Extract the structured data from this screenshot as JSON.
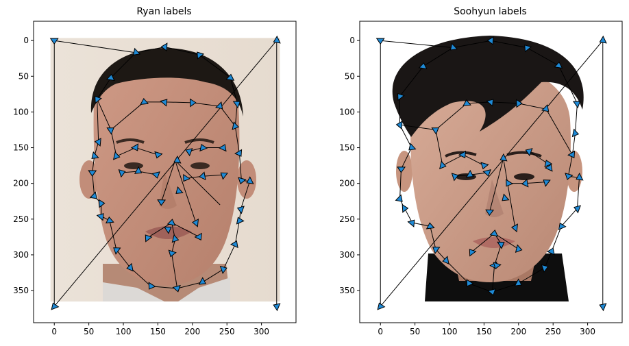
{
  "chart_data": [
    {
      "type": "scatter",
      "title": "Ryan labels",
      "xlabel": "",
      "ylabel": "",
      "xlim": [
        -30,
        350
      ],
      "ylim": [
        395,
        -27
      ],
      "xticks": [
        0,
        50,
        100,
        150,
        200,
        250,
        300
      ],
      "yticks": [
        0,
        50,
        100,
        150,
        200,
        250,
        300,
        350
      ],
      "image": {
        "extent": [
          0,
          322,
          372,
          0
        ],
        "description": "face photograph"
      },
      "points": [
        [
          0,
          0
        ],
        [
          118,
          17
        ],
        [
          160,
          9
        ],
        [
          210,
          20
        ],
        [
          255,
          52
        ],
        [
          265,
          88
        ],
        [
          262,
          120
        ],
        [
          268,
          158
        ],
        [
          271,
          196
        ],
        [
          283,
          197
        ],
        [
          270,
          236
        ],
        [
          268,
          252
        ],
        [
          262,
          285
        ],
        [
          245,
          320
        ],
        [
          215,
          338
        ],
        [
          178,
          347
        ],
        [
          140,
          344
        ],
        [
          110,
          318
        ],
        [
          90,
          293
        ],
        [
          80,
          252
        ],
        [
          68,
          246
        ],
        [
          68,
          228
        ],
        [
          58,
          218
        ],
        [
          55,
          185
        ],
        [
          58,
          162
        ],
        [
          64,
          142
        ],
        [
          62,
          82
        ],
        [
          82,
          52
        ],
        [
          82,
          125
        ],
        [
          90,
          162
        ],
        [
          118,
          150
        ],
        [
          150,
          160
        ],
        [
          178,
          168
        ],
        [
          195,
          155
        ],
        [
          215,
          150
        ],
        [
          245,
          150
        ],
        [
          98,
          185
        ],
        [
          122,
          183
        ],
        [
          148,
          188
        ],
        [
          190,
          193
        ],
        [
          215,
          190
        ],
        [
          245,
          188
        ],
        [
          130,
          86
        ],
        [
          160,
          86
        ],
        [
          200,
          87
        ],
        [
          240,
          92
        ],
        [
          155,
          226
        ],
        [
          180,
          211
        ],
        [
          205,
          255
        ],
        [
          135,
          276
        ],
        [
          170,
          255
        ],
        [
          165,
          264
        ],
        [
          175,
          278
        ],
        [
          210,
          275
        ],
        [
          170,
          298
        ],
        [
          322,
          0
        ],
        [
          322,
          372
        ],
        [
          0,
          372
        ]
      ],
      "polyline": [
        [
          0,
          0
        ],
        [
          118,
          17
        ],
        [
          160,
          9
        ],
        [
          210,
          20
        ],
        [
          255,
          52
        ],
        [
          265,
          88
        ],
        [
          262,
          120
        ],
        [
          268,
          158
        ],
        [
          271,
          196
        ],
        [
          283,
          197
        ],
        [
          270,
          236
        ],
        [
          268,
          252
        ],
        [
          262,
          285
        ],
        [
          245,
          320
        ],
        [
          215,
          338
        ],
        [
          178,
          347
        ],
        [
          140,
          344
        ],
        [
          110,
          318
        ],
        [
          90,
          293
        ],
        [
          80,
          252
        ],
        [
          68,
          246
        ],
        [
          68,
          228
        ],
        [
          58,
          218
        ],
        [
          55,
          185
        ],
        [
          58,
          162
        ],
        [
          64,
          142
        ],
        [
          62,
          82
        ],
        [
          82,
          52
        ],
        [
          118,
          17
        ],
        [
          160,
          9
        ]
      ],
      "segments": [
        [
          [
            0,
            0
          ],
          [
            0,
            372
          ]
        ],
        [
          [
            322,
            0
          ],
          [
            322,
            372
          ]
        ],
        [
          [
            0,
            372
          ],
          [
            322,
            0
          ]
        ],
        [
          [
            82,
            125
          ],
          [
            90,
            162
          ]
        ],
        [
          [
            90,
            162
          ],
          [
            118,
            150
          ]
        ],
        [
          [
            118,
            150
          ],
          [
            150,
            160
          ]
        ],
        [
          [
            195,
            155
          ],
          [
            215,
            150
          ]
        ],
        [
          [
            215,
            150
          ],
          [
            245,
            150
          ]
        ],
        [
          [
            98,
            185
          ],
          [
            122,
            183
          ]
        ],
        [
          [
            122,
            183
          ],
          [
            148,
            188
          ]
        ],
        [
          [
            190,
            193
          ],
          [
            215,
            190
          ]
        ],
        [
          [
            215,
            190
          ],
          [
            245,
            188
          ]
        ],
        [
          [
            62,
            82
          ],
          [
            82,
            125
          ]
        ],
        [
          [
            82,
            125
          ],
          [
            130,
            86
          ]
        ],
        [
          [
            130,
            86
          ],
          [
            160,
            86
          ]
        ],
        [
          [
            160,
            86
          ],
          [
            200,
            87
          ]
        ],
        [
          [
            200,
            87
          ],
          [
            240,
            92
          ]
        ],
        [
          [
            240,
            92
          ],
          [
            262,
            120
          ]
        ],
        [
          [
            175,
            168
          ],
          [
            155,
            226
          ]
        ],
        [
          [
            175,
            168
          ],
          [
            205,
            255
          ]
        ],
        [
          [
            175,
            168
          ],
          [
            240,
            230
          ]
        ],
        [
          [
            135,
            276
          ],
          [
            170,
            255
          ]
        ],
        [
          [
            170,
            255
          ],
          [
            210,
            275
          ]
        ],
        [
          [
            170,
            255
          ],
          [
            175,
            278
          ]
        ],
        [
          [
            175,
            278
          ],
          [
            170,
            298
          ]
        ],
        [
          [
            170,
            298
          ],
          [
            178,
            347
          ]
        ]
      ]
    },
    {
      "type": "scatter",
      "title": "Soohyun labels",
      "xlabel": "",
      "ylabel": "",
      "xlim": [
        -30,
        350
      ],
      "ylim": [
        395,
        -27
      ],
      "xticks": [
        0,
        50,
        100,
        150,
        200,
        250,
        300
      ],
      "yticks": [
        0,
        50,
        100,
        150,
        200,
        250,
        300,
        350
      ],
      "image": {
        "extent": [
          0,
          322,
          372,
          0
        ],
        "description": "face photograph"
      },
      "points": [
        [
          0,
          0
        ],
        [
          105,
          10
        ],
        [
          160,
          0
        ],
        [
          212,
          10
        ],
        [
          258,
          35
        ],
        [
          285,
          88
        ],
        [
          282,
          130
        ],
        [
          278,
          160
        ],
        [
          272,
          190
        ],
        [
          288,
          192
        ],
        [
          285,
          235
        ],
        [
          262,
          260
        ],
        [
          248,
          295
        ],
        [
          238,
          318
        ],
        [
          200,
          340
        ],
        [
          162,
          352
        ],
        [
          128,
          340
        ],
        [
          95,
          308
        ],
        [
          80,
          292
        ],
        [
          72,
          260
        ],
        [
          46,
          255
        ],
        [
          35,
          235
        ],
        [
          28,
          222
        ],
        [
          30,
          180
        ],
        [
          45,
          150
        ],
        [
          28,
          118
        ],
        [
          28,
          78
        ],
        [
          62,
          36
        ],
        [
          80,
          125
        ],
        [
          90,
          175
        ],
        [
          120,
          160
        ],
        [
          150,
          175
        ],
        [
          178,
          165
        ],
        [
          215,
          155
        ],
        [
          242,
          172
        ],
        [
          245,
          178
        ],
        [
          108,
          190
        ],
        [
          130,
          188
        ],
        [
          155,
          185
        ],
        [
          185,
          200
        ],
        [
          210,
          200
        ],
        [
          240,
          198
        ],
        [
          125,
          88
        ],
        [
          160,
          86
        ],
        [
          200,
          88
        ],
        [
          240,
          96
        ],
        [
          158,
          240
        ],
        [
          180,
          221
        ],
        [
          195,
          262
        ],
        [
          132,
          296
        ],
        [
          165,
          270
        ],
        [
          175,
          285
        ],
        [
          200,
          292
        ],
        [
          165,
          315
        ],
        [
          168,
          315
        ],
        [
          322,
          0
        ],
        [
          322,
          372
        ],
        [
          0,
          372
        ]
      ],
      "polyline": [
        [
          0,
          0
        ],
        [
          105,
          10
        ],
        [
          160,
          0
        ],
        [
          212,
          10
        ],
        [
          258,
          35
        ],
        [
          285,
          88
        ],
        [
          282,
          130
        ],
        [
          278,
          160
        ],
        [
          272,
          190
        ],
        [
          288,
          192
        ],
        [
          285,
          235
        ],
        [
          262,
          260
        ],
        [
          248,
          295
        ],
        [
          238,
          318
        ],
        [
          200,
          340
        ],
        [
          162,
          352
        ],
        [
          128,
          340
        ],
        [
          95,
          308
        ],
        [
          80,
          292
        ],
        [
          72,
          260
        ],
        [
          46,
          255
        ],
        [
          35,
          235
        ],
        [
          28,
          222
        ],
        [
          30,
          180
        ],
        [
          45,
          150
        ],
        [
          28,
          118
        ],
        [
          28,
          78
        ],
        [
          62,
          36
        ],
        [
          105,
          10
        ],
        [
          160,
          0
        ]
      ],
      "segments": [
        [
          [
            0,
            0
          ],
          [
            0,
            372
          ]
        ],
        [
          [
            322,
            0
          ],
          [
            322,
            372
          ]
        ],
        [
          [
            0,
            372
          ],
          [
            322,
            0
          ]
        ],
        [
          [
            80,
            125
          ],
          [
            90,
            175
          ]
        ],
        [
          [
            90,
            175
          ],
          [
            120,
            160
          ]
        ],
        [
          [
            120,
            160
          ],
          [
            150,
            175
          ]
        ],
        [
          [
            215,
            155
          ],
          [
            242,
            172
          ]
        ],
        [
          [
            108,
            190
          ],
          [
            130,
            188
          ]
        ],
        [
          [
            130,
            188
          ],
          [
            155,
            185
          ]
        ],
        [
          [
            185,
            200
          ],
          [
            210,
            200
          ]
        ],
        [
          [
            210,
            200
          ],
          [
            240,
            198
          ]
        ],
        [
          [
            28,
            118
          ],
          [
            80,
            125
          ]
        ],
        [
          [
            80,
            125
          ],
          [
            125,
            88
          ]
        ],
        [
          [
            125,
            88
          ],
          [
            160,
            86
          ]
        ],
        [
          [
            160,
            86
          ],
          [
            200,
            88
          ]
        ],
        [
          [
            200,
            88
          ],
          [
            240,
            96
          ]
        ],
        [
          [
            240,
            96
          ],
          [
            278,
            160
          ]
        ],
        [
          [
            178,
            165
          ],
          [
            158,
            240
          ]
        ],
        [
          [
            178,
            165
          ],
          [
            195,
            262
          ]
        ],
        [
          [
            132,
            296
          ],
          [
            165,
            270
          ]
        ],
        [
          [
            165,
            270
          ],
          [
            200,
            292
          ]
        ],
        [
          [
            165,
            270
          ],
          [
            175,
            285
          ]
        ],
        [
          [
            175,
            285
          ],
          [
            165,
            315
          ]
        ],
        [
          [
            165,
            315
          ],
          [
            162,
            352
          ]
        ]
      ]
    }
  ]
}
